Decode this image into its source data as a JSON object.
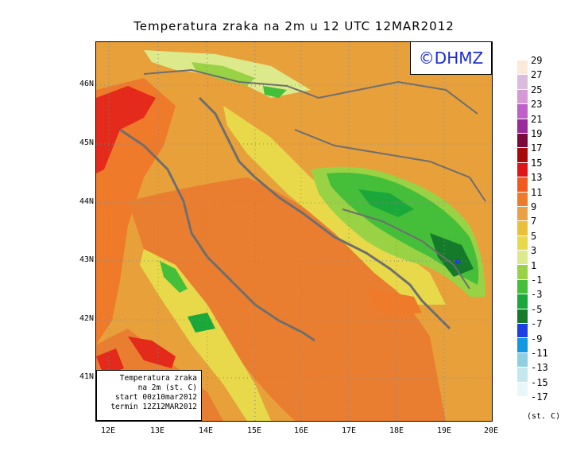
{
  "title": "Temperatura zraka na 2m u 12 UTC 12MAR2012",
  "copyright": "©DHMZ",
  "info_box": {
    "line1": "Temperatura zraka",
    "line2": "na 2m (st. C)",
    "line3": "start 00z10mar2012",
    "line4": "termin 12Z12MAR2012"
  },
  "lat_labels": [
    "46N",
    "45N",
    "44N",
    "43N",
    "42N",
    "41N"
  ],
  "lon_labels": [
    "12E",
    "13E",
    "14E",
    "15E",
    "16E",
    "17E",
    "18E",
    "19E",
    "20E"
  ],
  "legend": {
    "unit": "(st. C)",
    "labels": [
      "29",
      "27",
      "25",
      "23",
      "21",
      "19",
      "17",
      "15",
      "13",
      "11",
      "9",
      "7",
      "5",
      "3",
      "1",
      "-1",
      "-3",
      "-5",
      "-7",
      "-9",
      "-11",
      "-13",
      "-15",
      "-17"
    ],
    "colors": [
      "#fde9d9",
      "#dcbcdc",
      "#d59ad5",
      "#be60c8",
      "#9b2a9a",
      "#7a0a3c",
      "#a80a0a",
      "#e01515",
      "#f05a1e",
      "#ef7a2a",
      "#eaa045",
      "#e8c138",
      "#e8d94a",
      "#dcea8c",
      "#99d245",
      "#45be3a",
      "#1aa83a",
      "#157a2a",
      "#1d3fe0",
      "#1098e0",
      "#8fd0e0",
      "#c5e8ee",
      "#e8f8fa"
    ]
  },
  "colors": {
    "sea": "#ea7e30",
    "land": "#e8a03a",
    "coast": "#6e6e6e",
    "warm": "#e42a1a",
    "cold": "#2aae3a"
  }
}
